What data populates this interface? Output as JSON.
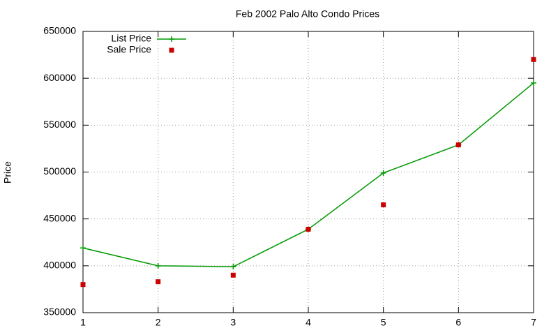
{
  "chart_data": {
    "type": "line",
    "title": "Feb 2002 Palo Alto Condo Prices",
    "y_label": "Price",
    "x": [
      1,
      2,
      3,
      4,
      5,
      6,
      7
    ],
    "series": [
      {
        "name": "List Price",
        "color": "#009900",
        "line": true,
        "marker": "plus",
        "values": [
          419000,
          400000,
          399000,
          439000,
          499000,
          529000,
          595000
        ]
      },
      {
        "name": "Sale Price",
        "color": "#cc0000",
        "line": false,
        "marker": "square",
        "values": [
          380000,
          383000,
          390000,
          439000,
          465000,
          529000,
          620000
        ]
      }
    ],
    "xlim": [
      1,
      7
    ],
    "xticks": [
      1,
      2,
      3,
      4,
      5,
      6,
      7
    ],
    "ylim": [
      350000,
      650000
    ],
    "yticks": [
      350000,
      400000,
      450000,
      500000,
      550000,
      600000,
      650000
    ],
    "grid": true,
    "legend": "top-left"
  }
}
